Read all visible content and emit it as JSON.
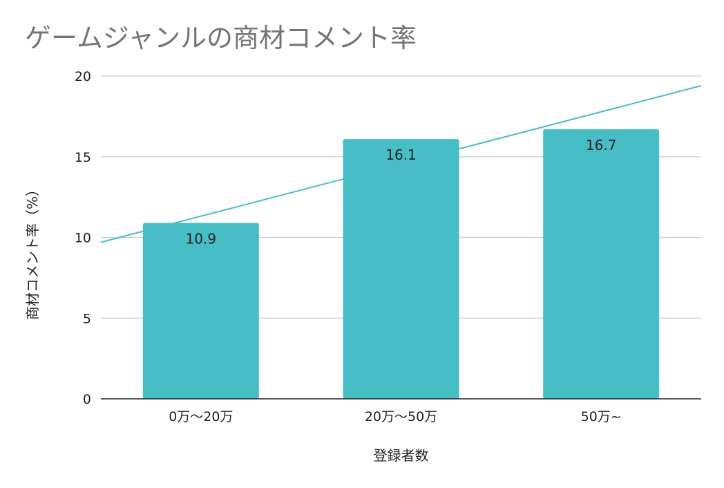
{
  "chart_data": {
    "type": "bar",
    "title": "ゲームジャンルの商材コメント率",
    "xlabel": "登録者数",
    "ylabel": "商材コメント率（%）",
    "categories": [
      "0万〜20万",
      "20万〜50万",
      "50万~"
    ],
    "values": [
      10.9,
      16.1,
      16.7
    ],
    "data_labels": [
      "10.9",
      "16.1",
      "16.7"
    ],
    "ylim": [
      0,
      20
    ],
    "yticks": [
      0,
      5,
      10,
      15,
      20
    ],
    "trendline": {
      "type": "linear",
      "y_start": 9.7,
      "y_end": 19.4
    },
    "grid": true,
    "legend": "none",
    "colors": {
      "bar": "#47bdc6",
      "trendline": "#47bdc6",
      "grid": "#cccccc",
      "axis": "#222222"
    }
  }
}
